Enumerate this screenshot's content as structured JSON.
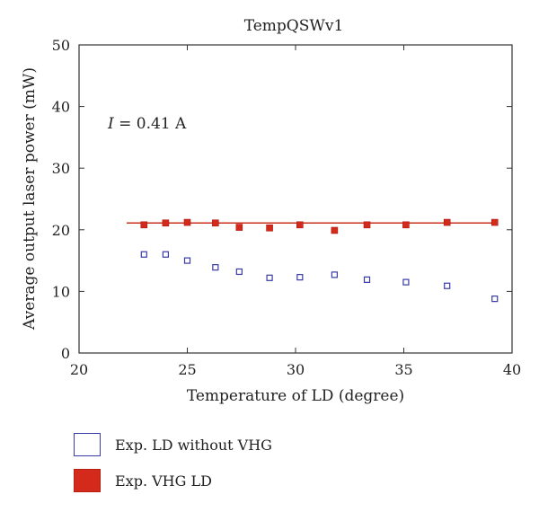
{
  "chart_data": {
    "type": "scatter",
    "title": "TempQSWv1",
    "xlabel": "Temperature of LD (degree)",
    "ylabel": "Average output laser power (mW)",
    "xlim": [
      20,
      40
    ],
    "ylim": [
      0,
      50
    ],
    "xticks": [
      20,
      25,
      30,
      35,
      40
    ],
    "yticks": [
      0,
      10,
      20,
      30,
      40,
      50
    ],
    "annotation": {
      "var": "I",
      "text": " = 0.41 A"
    },
    "series": [
      {
        "name": "Exp. LD without VHG",
        "color": "#3a3aa8",
        "marker": "open-square",
        "x": [
          23.0,
          24.0,
          25.0,
          26.3,
          27.4,
          28.8,
          30.2,
          31.8,
          33.3,
          35.1,
          37.0,
          39.2
        ],
        "y": [
          16.0,
          16.0,
          15.0,
          13.9,
          13.2,
          12.2,
          12.3,
          12.7,
          11.9,
          11.5,
          10.9,
          8.8
        ]
      },
      {
        "name": "Exp. VHG LD",
        "color": "#d42a1c",
        "marker": "filled-square",
        "x": [
          23.0,
          24.0,
          25.0,
          26.3,
          27.4,
          28.8,
          30.2,
          31.8,
          33.3,
          35.1,
          37.0,
          39.2
        ],
        "y": [
          20.8,
          21.1,
          21.2,
          21.1,
          20.4,
          20.3,
          20.8,
          19.9,
          20.8,
          20.8,
          21.2,
          21.2
        ]
      }
    ],
    "fit_line": {
      "color": "#c8321e",
      "x": [
        22.2,
        39.3
      ],
      "y": [
        21.1,
        21.1
      ]
    }
  }
}
